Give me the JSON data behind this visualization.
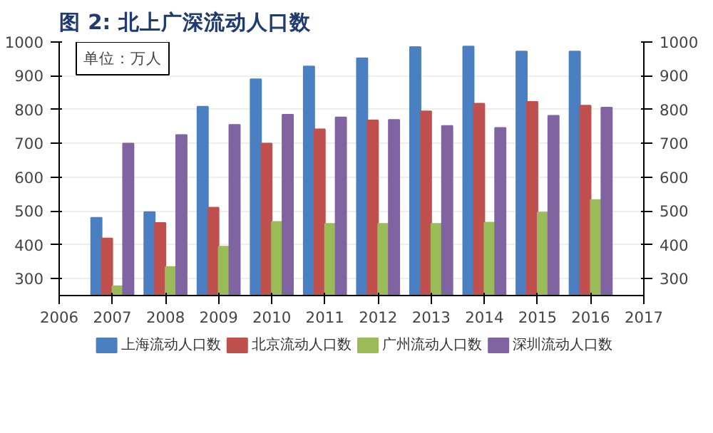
{
  "chart_data": {
    "type": "bar",
    "title": "图 2: 北上广深流动人口数",
    "annotations": [
      "单位：万人"
    ],
    "x": [
      2007,
      2008,
      2009,
      2010,
      2011,
      2012,
      2013,
      2014,
      2015,
      2016
    ],
    "series": [
      {
        "name": "上海流动人口数",
        "color": "#4a7fc1",
        "values": [
          480,
          497,
          809,
          890,
          928,
          952,
          985,
          987,
          972,
          972
        ]
      },
      {
        "name": "北京流动人口数",
        "color": "#c0504d",
        "values": [
          419,
          465,
          510,
          700,
          742,
          768,
          795,
          818,
          823,
          812
        ]
      },
      {
        "name": "广州流动人口数",
        "color": "#9bbb59",
        "values": [
          278,
          335,
          395,
          468,
          462,
          462,
          462,
          466,
          496,
          533
        ]
      },
      {
        "name": "深圳流动人口数",
        "color": "#8064a2",
        "values": [
          700,
          725,
          755,
          785,
          777,
          770,
          752,
          746,
          782,
          806
        ]
      }
    ],
    "xlim": [
      2006,
      2017
    ],
    "xticks": [
      2006,
      2007,
      2008,
      2009,
      2010,
      2011,
      2012,
      2013,
      2014,
      2015,
      2016,
      2017
    ],
    "ylim": [
      250,
      1000
    ],
    "yticks": [
      300,
      400,
      500,
      600,
      700,
      800,
      900,
      1000
    ],
    "y2lim": [
      250,
      1000
    ],
    "y2ticks": [
      300,
      400,
      500,
      600,
      700,
      800,
      900,
      1000
    ],
    "grid": "y",
    "legend": "bottom"
  }
}
